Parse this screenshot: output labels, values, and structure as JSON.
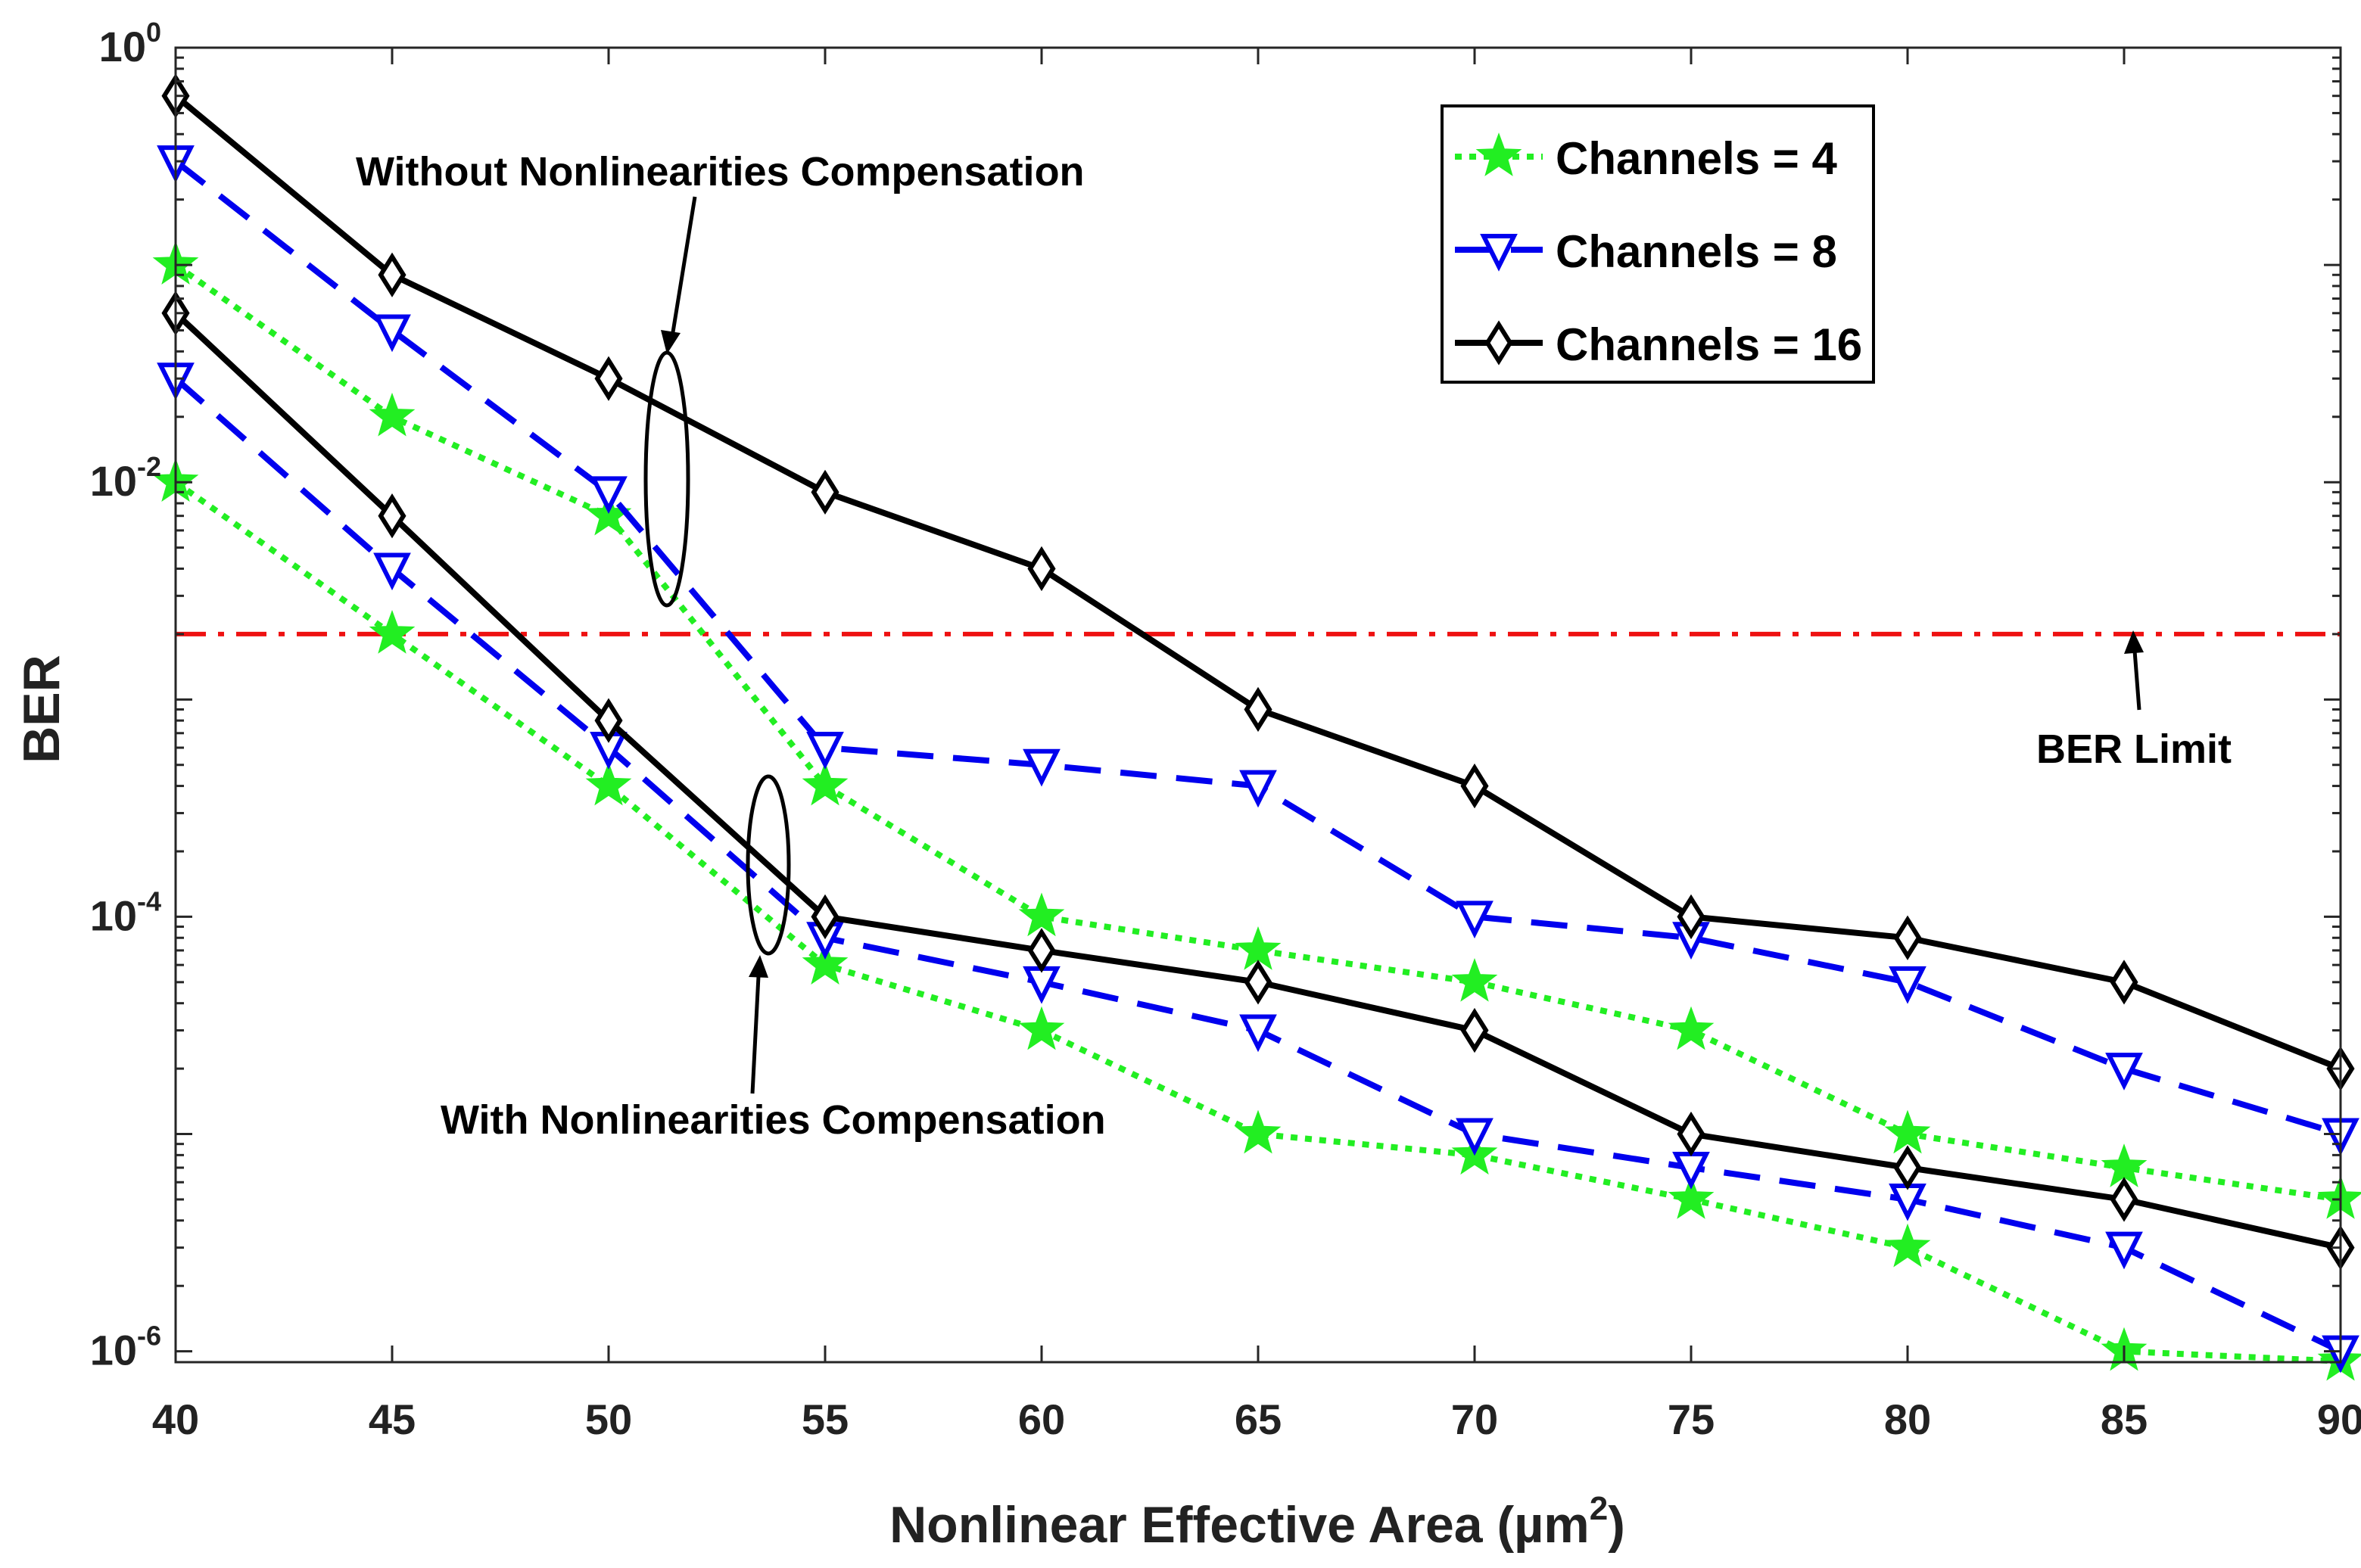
{
  "chart_data": {
    "type": "line",
    "title": "",
    "xlabel": "Nonlinear Effective Area (µm",
    "xlabel_sup": "2",
    "xlabel_close": ")",
    "ylabel": "BER",
    "yscale": "log",
    "xlim": [
      40,
      90
    ],
    "ylim_exp": [
      -6.05,
      0
    ],
    "x": [
      40,
      45,
      50,
      55,
      60,
      65,
      70,
      75,
      80,
      85,
      90
    ],
    "x_tick_labels": [
      "40",
      "45",
      "50",
      "55",
      "60",
      "65",
      "70",
      "75",
      "80",
      "85",
      "90"
    ],
    "y_ticks": [
      {
        "base": "10",
        "exp": "0",
        "value_exp": 0
      },
      {
        "base": "10",
        "exp": "-2",
        "value_exp": -2
      },
      {
        "base": "10",
        "exp": "-4",
        "value_exp": -4
      },
      {
        "base": "10",
        "exp": "-6",
        "value_exp": -6
      }
    ],
    "series": [
      {
        "name": "Channels = 4",
        "group": "without",
        "color": "#22ee22",
        "style": "dotted",
        "marker": "star",
        "values": [
          0.1,
          0.02,
          0.007,
          0.0004,
          0.0001,
          7e-05,
          5e-05,
          3e-05,
          1e-05,
          7e-06,
          5e-06
        ]
      },
      {
        "name": "Channels = 8",
        "group": "without",
        "color": "#0000ee",
        "style": "dashed",
        "marker": "triangle-down",
        "values": [
          0.3,
          0.05,
          0.009,
          0.0006,
          0.0005,
          0.0004,
          0.0001,
          8e-05,
          5e-05,
          2e-05,
          1e-05
        ]
      },
      {
        "name": "Channels = 16",
        "group": "without",
        "color": "#000000",
        "style": "solid",
        "marker": "diamond",
        "values": [
          0.6,
          0.09,
          0.03,
          0.009,
          0.004,
          0.0009,
          0.0004,
          0.0001,
          8e-05,
          5e-05,
          2e-05
        ]
      },
      {
        "name": "Channels = 4",
        "group": "with",
        "color": "#22ee22",
        "style": "dotted",
        "marker": "star",
        "values": [
          0.01,
          0.002,
          0.0004,
          6e-05,
          3e-05,
          1e-05,
          8e-06,
          5e-06,
          3e-06,
          1e-06,
          9e-07
        ]
      },
      {
        "name": "Channels = 8",
        "group": "with",
        "color": "#0000ee",
        "style": "dashed",
        "marker": "triangle-down",
        "values": [
          0.03,
          0.004,
          0.0006,
          8e-05,
          5e-05,
          3e-05,
          1e-05,
          7e-06,
          5e-06,
          3e-06,
          1e-06
        ]
      },
      {
        "name": "Channels = 16",
        "group": "with",
        "color": "#000000",
        "style": "solid",
        "marker": "diamond",
        "values": [
          0.06,
          0.007,
          0.0008,
          0.0001,
          7e-05,
          5e-05,
          3e-05,
          1e-05,
          7e-06,
          5e-06,
          3e-06
        ]
      }
    ],
    "ber_limit": {
      "value": 0.002,
      "color": "#ee1111",
      "label": "BER Limit"
    },
    "legend": {
      "position": "top-right",
      "entries": [
        {
          "label": "Channels = 4",
          "color": "#22ee22",
          "style": "dotted",
          "marker": "star"
        },
        {
          "label": "Channels = 8",
          "color": "#0000ee",
          "style": "dashed",
          "marker": "triangle-down"
        },
        {
          "label": "Channels = 16",
          "color": "#000000",
          "style": "solid",
          "marker": "diamond"
        }
      ]
    },
    "annotations": {
      "without": "Without Nonlinearities Compensation",
      "with": "With Nonlinearities Compensation"
    },
    "grid": false
  }
}
